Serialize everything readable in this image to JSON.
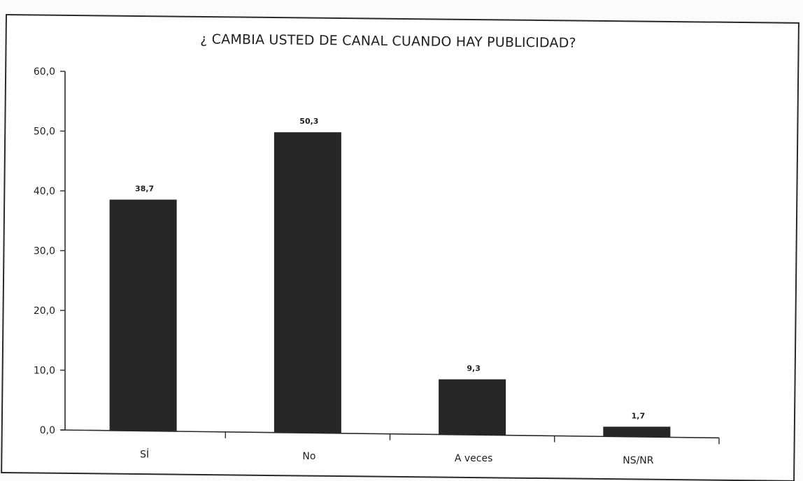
{
  "chart_data": {
    "type": "bar",
    "title": "¿ CAMBIA USTED DE CANAL CUANDO HAY PUBLICIDAD?",
    "xlabel": "",
    "ylabel": "",
    "categories": [
      "SÍ",
      "No",
      "A veces",
      "NS/NR"
    ],
    "values": [
      38.7,
      50.3,
      9.3,
      1.7
    ],
    "value_labels": [
      "38,7",
      "50,3",
      "9,3",
      "1,7"
    ],
    "yticks": [
      "0,0",
      "10,0",
      "20,0",
      "30,0",
      "40,0",
      "50,0",
      "60,0"
    ],
    "ylim": [
      0,
      60
    ],
    "grid": false,
    "legend": "none",
    "colors": {
      "bar": "#262626",
      "axis": "#2b2b2b"
    }
  }
}
